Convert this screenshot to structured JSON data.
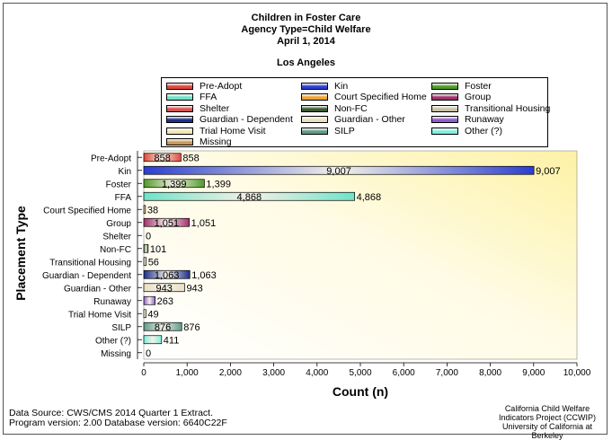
{
  "header": {
    "title_line1": "Children in Foster Care",
    "title_line2": "Agency Type=Child Welfare",
    "title_line3": "April 1, 2014",
    "region": "Los Angeles"
  },
  "legend": {
    "items": [
      {
        "label": "Pre-Adopt",
        "color": "#e0453a"
      },
      {
        "label": "Kin",
        "color": "#2b3fd1"
      },
      {
        "label": "Foster",
        "color": "#4f9a2a"
      },
      {
        "label": "FFA",
        "color": "#6fe3c8"
      },
      {
        "label": "Court Specified Home",
        "color": "#f0a431"
      },
      {
        "label": "Group",
        "color": "#a3306e"
      },
      {
        "label": "Shelter",
        "color": "#d9534f"
      },
      {
        "label": "Non-FC",
        "color": "#3d5a2e"
      },
      {
        "label": "Transitional Housing",
        "color": "#c9c2a4"
      },
      {
        "label": "Guardian - Dependent",
        "color": "#1d2f8a"
      },
      {
        "label": "Guardian - Other",
        "color": "#e8dfc4"
      },
      {
        "label": "Runaway",
        "color": "#8f5cc9"
      },
      {
        "label": "Trial Home Visit",
        "color": "#f1e7b3"
      },
      {
        "label": "SILP",
        "color": "#5f9a8a"
      },
      {
        "label": "Other (?)",
        "color": "#7ef0de"
      },
      {
        "label": "Missing",
        "color": "#c59a5a"
      }
    ]
  },
  "axes": {
    "ylabel": "Placement Type",
    "xlabel": "Count (n)"
  },
  "footer": {
    "line1": "Data Source:  CWS/CMS 2014 Quarter 1 Extract.",
    "line2": "Program version: 2.00 Database version: 6640C22F",
    "credit1": "California Child Welfare",
    "credit2": "Indicators Project (CCWIP)",
    "credit3": "University of California at Berkeley"
  },
  "chart_data": {
    "type": "bar",
    "orientation": "horizontal",
    "title": "Children in Foster Care",
    "xlabel": "Count (n)",
    "ylabel": "Placement Type",
    "xlim": [
      0,
      10000
    ],
    "xticks": [
      "0",
      "1,000",
      "2,000",
      "3,000",
      "4,000",
      "5,000",
      "6,000",
      "7,000",
      "8,000",
      "9,000",
      "10,000"
    ],
    "categories": [
      "Pre-Adopt",
      "Kin",
      "Foster",
      "FFA",
      "Court Specified Home",
      "Group",
      "Shelter",
      "Non-FC",
      "Transitional Housing",
      "Guardian - Dependent",
      "Guardian - Other",
      "Runaway",
      "Trial Home Visit",
      "SILP",
      "Other (?)",
      "Missing"
    ],
    "values": [
      858,
      9007,
      1399,
      4868,
      38,
      1051,
      0,
      101,
      56,
      1063,
      943,
      263,
      49,
      876,
      411,
      0
    ],
    "value_labels": [
      "858",
      "9,007",
      "1,399",
      "4,868",
      "38",
      "1,051",
      "0",
      "101",
      "56",
      "1,063",
      "943",
      "263",
      "49",
      "876",
      "411",
      "0"
    ],
    "colors": [
      "#e0453a",
      "#2b3fd1",
      "#4f9a2a",
      "#6fe3c8",
      "#f0a431",
      "#a3306e",
      "#d9534f",
      "#3d5a2e",
      "#c9c2a4",
      "#1d2f8a",
      "#e8dfc4",
      "#8f5cc9",
      "#f1e7b3",
      "#5f9a8a",
      "#7ef0de",
      "#c59a5a"
    ],
    "legend_position": "top",
    "grid": false
  }
}
